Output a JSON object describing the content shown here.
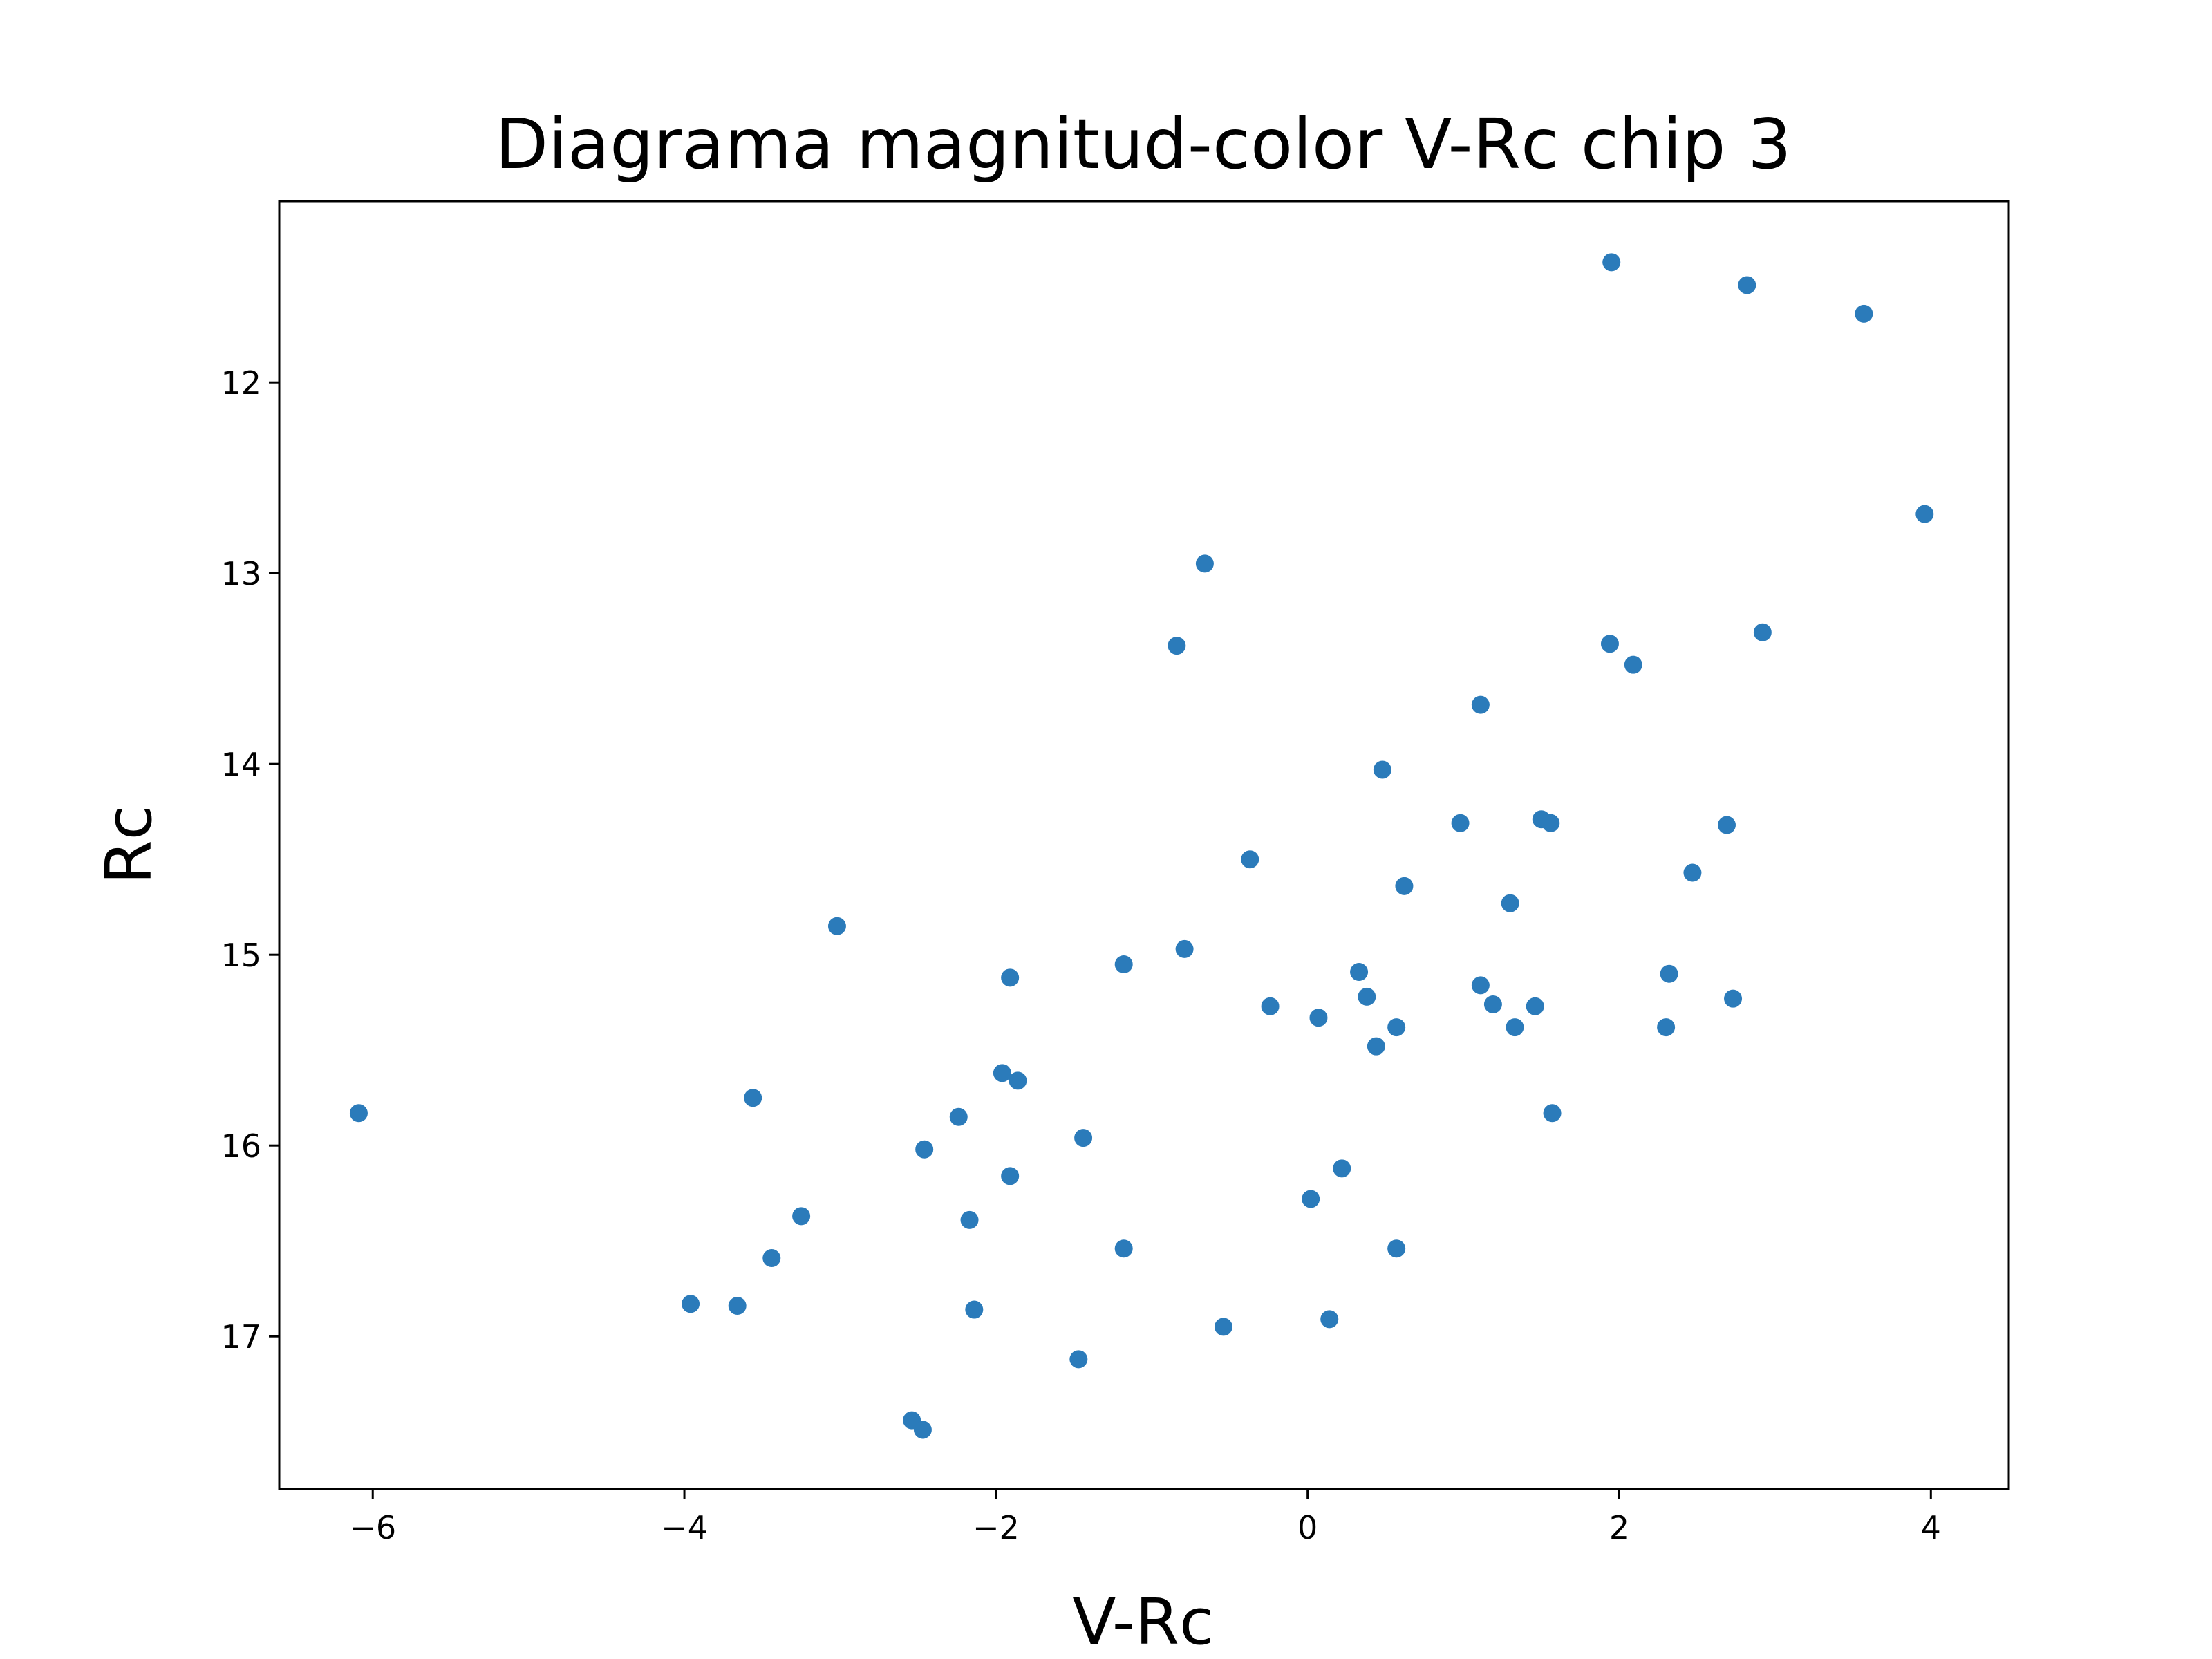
{
  "chart_data": {
    "type": "scatter",
    "title": "Diagrama magnitud-color V-Rc chip 3",
    "xlabel": "V-Rc",
    "ylabel": "Rc",
    "xlim": [
      -6.6,
      4.5
    ],
    "ylim": [
      17.8,
      11.05
    ],
    "y_inverted": true,
    "grid": false,
    "x_ticks": [
      -6,
      -4,
      -2,
      0,
      2,
      4
    ],
    "x_tick_labels": [
      "−6",
      "−4",
      "−2",
      "0",
      "2",
      "4"
    ],
    "y_ticks": [
      12,
      13,
      14,
      15,
      16,
      17
    ],
    "y_tick_labels": [
      "12",
      "13",
      "14",
      "15",
      "16",
      "17"
    ],
    "marker_color": "#2b7bba",
    "points": [
      {
        "x": -6.09,
        "y": 15.83
      },
      {
        "x": -3.96,
        "y": 16.83
      },
      {
        "x": -3.66,
        "y": 16.84
      },
      {
        "x": -3.56,
        "y": 15.75
      },
      {
        "x": -3.44,
        "y": 16.59
      },
      {
        "x": -3.25,
        "y": 16.37
      },
      {
        "x": -3.02,
        "y": 14.85
      },
      {
        "x": -2.54,
        "y": 17.44
      },
      {
        "x": -2.47,
        "y": 17.49
      },
      {
        "x": -2.46,
        "y": 16.02
      },
      {
        "x": -2.24,
        "y": 15.85
      },
      {
        "x": -2.17,
        "y": 16.39
      },
      {
        "x": -2.14,
        "y": 16.86
      },
      {
        "x": -1.96,
        "y": 15.62
      },
      {
        "x": -1.91,
        "y": 15.12
      },
      {
        "x": -1.91,
        "y": 16.16
      },
      {
        "x": -1.86,
        "y": 15.66
      },
      {
        "x": -1.47,
        "y": 17.12
      },
      {
        "x": -1.44,
        "y": 15.96
      },
      {
        "x": -1.18,
        "y": 15.05
      },
      {
        "x": -1.18,
        "y": 16.54
      },
      {
        "x": -0.84,
        "y": 13.38
      },
      {
        "x": -0.79,
        "y": 14.97
      },
      {
        "x": -0.66,
        "y": 12.95
      },
      {
        "x": -0.54,
        "y": 16.95
      },
      {
        "x": -0.37,
        "y": 14.5
      },
      {
        "x": -0.24,
        "y": 15.27
      },
      {
        "x": 0.02,
        "y": 16.28
      },
      {
        "x": 0.07,
        "y": 15.33
      },
      {
        "x": 0.14,
        "y": 16.91
      },
      {
        "x": 0.22,
        "y": 16.12
      },
      {
        "x": 0.33,
        "y": 15.09
      },
      {
        "x": 0.38,
        "y": 15.22
      },
      {
        "x": 0.44,
        "y": 15.48
      },
      {
        "x": 0.48,
        "y": 14.03
      },
      {
        "x": 0.57,
        "y": 16.54
      },
      {
        "x": 0.57,
        "y": 15.38
      },
      {
        "x": 0.62,
        "y": 14.64
      },
      {
        "x": 0.98,
        "y": 14.31
      },
      {
        "x": 1.11,
        "y": 13.69
      },
      {
        "x": 1.11,
        "y": 15.16
      },
      {
        "x": 1.19,
        "y": 15.26
      },
      {
        "x": 1.3,
        "y": 14.73
      },
      {
        "x": 1.33,
        "y": 15.38
      },
      {
        "x": 1.46,
        "y": 15.27
      },
      {
        "x": 1.5,
        "y": 14.29
      },
      {
        "x": 1.56,
        "y": 14.31
      },
      {
        "x": 1.57,
        "y": 15.83
      },
      {
        "x": 1.94,
        "y": 13.37
      },
      {
        "x": 1.95,
        "y": 11.37
      },
      {
        "x": 2.09,
        "y": 13.48
      },
      {
        "x": 2.3,
        "y": 15.38
      },
      {
        "x": 2.32,
        "y": 15.1
      },
      {
        "x": 2.47,
        "y": 14.57
      },
      {
        "x": 2.69,
        "y": 14.32
      },
      {
        "x": 2.73,
        "y": 15.23
      },
      {
        "x": 2.82,
        "y": 11.49
      },
      {
        "x": 2.92,
        "y": 13.31
      },
      {
        "x": 3.57,
        "y": 11.64
      },
      {
        "x": 3.96,
        "y": 12.69
      }
    ]
  }
}
